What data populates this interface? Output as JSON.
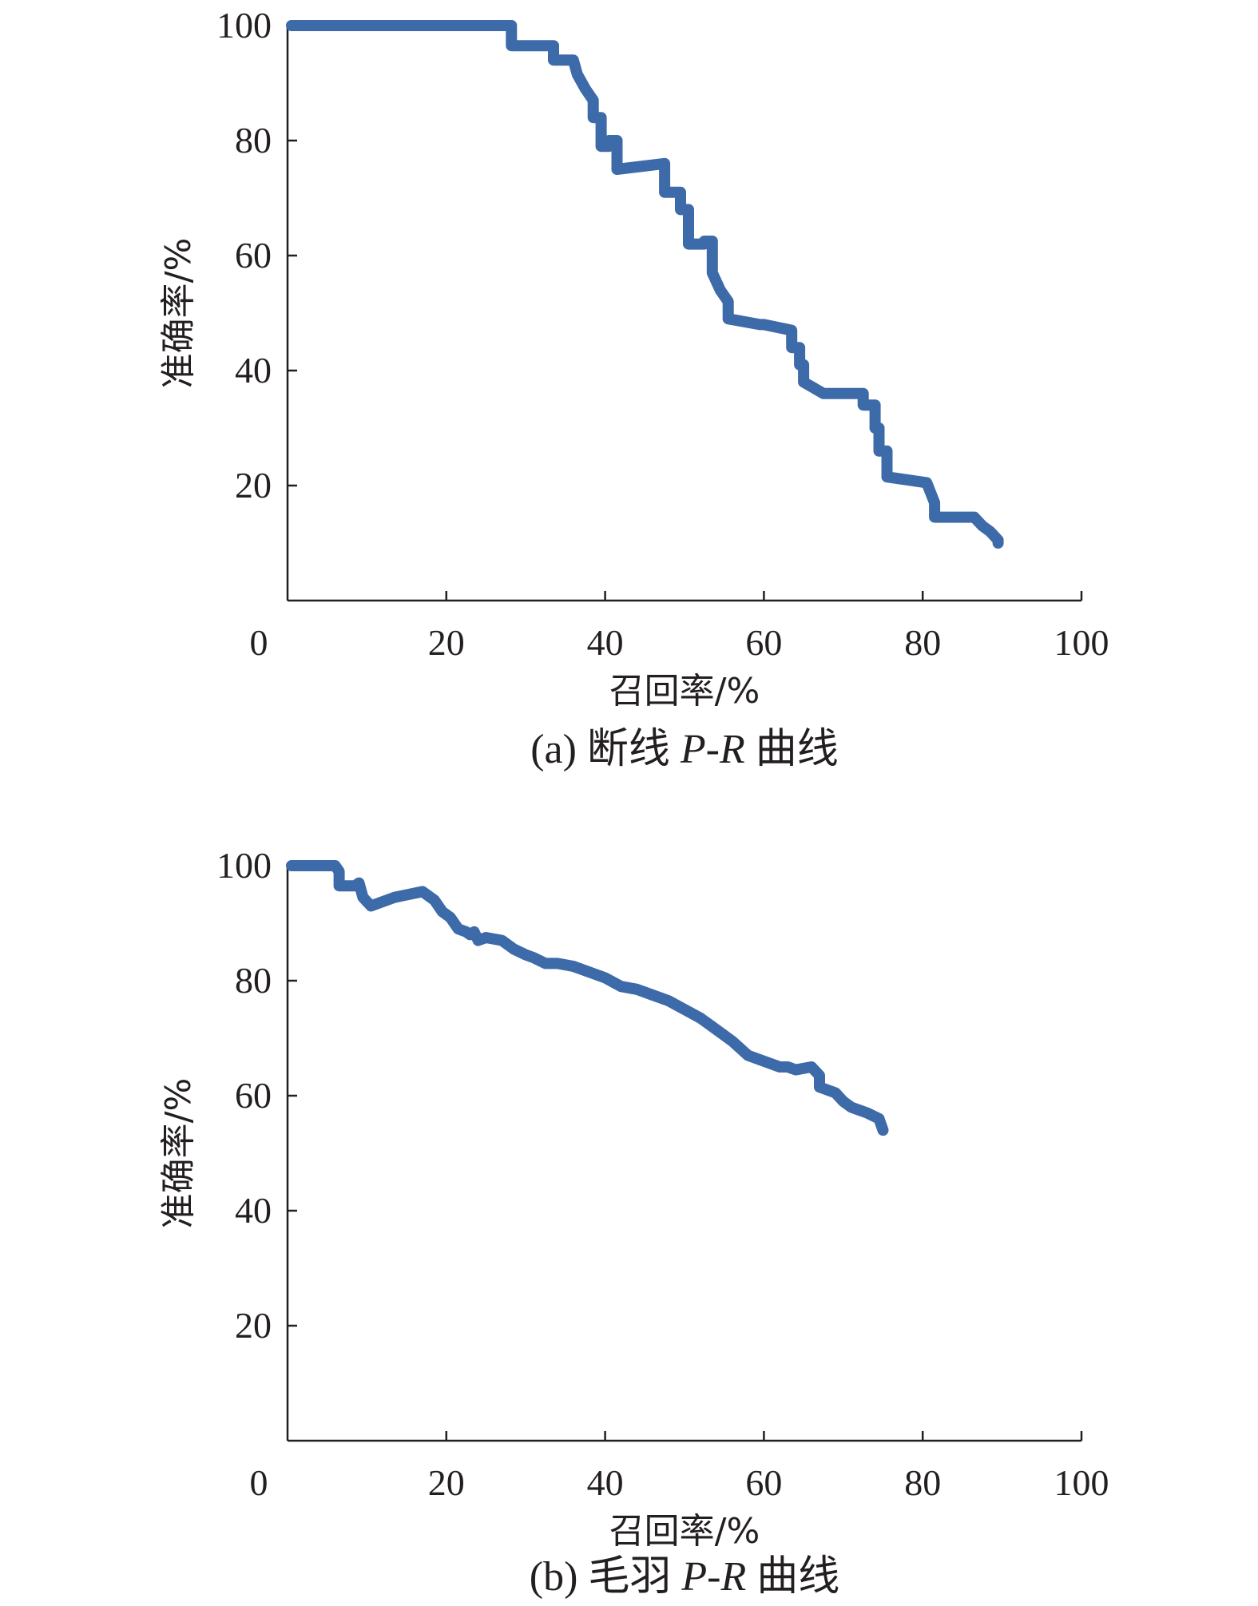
{
  "chart_data": [
    {
      "type": "line",
      "caption_prefix": "(a) 断线 ",
      "caption_italic": "P-R",
      "caption_suffix": " 曲线",
      "xlabel": "召回率/%",
      "ylabel": "准确率/%",
      "xlim": [
        0,
        100
      ],
      "ylim": [
        0,
        100
      ],
      "x_ticks": [
        0,
        20,
        40,
        60,
        80,
        100
      ],
      "y_ticks": [
        20,
        40,
        60,
        80,
        100
      ],
      "x_tick_labels": [
        "0",
        "20",
        "40",
        "60",
        "80",
        "100"
      ],
      "y_tick_labels": [
        "20",
        "40",
        "60",
        "80",
        "100"
      ],
      "color": "#3d6aa8",
      "series": [
        {
          "x": [
            0.5,
            28.2,
            28.2,
            33.5,
            33.5,
            36.0,
            36.5,
            37.5,
            38.5,
            38.5,
            39.5,
            39.5,
            40.5,
            40.5,
            41.5,
            41.5,
            47.5,
            47.5,
            49.5,
            49.5,
            50.5,
            50.5,
            52.5,
            52.5,
            53.5,
            53.5,
            54.5,
            55.5,
            55.5,
            59.5,
            60.0,
            63.5,
            63.5,
            64.5,
            64.5,
            65.0,
            65.0,
            67.5,
            72.5,
            72.5,
            74.0,
            74.0,
            74.5,
            74.5,
            75.5,
            75.5,
            80.5,
            81.5,
            81.5,
            84.5,
            86.5,
            87.5,
            88.5,
            89.5,
            89.5
          ],
          "y": [
            100,
            100,
            96.5,
            96.5,
            94.0,
            94.0,
            91.5,
            89.0,
            87.0,
            84.0,
            84.0,
            79.0,
            79.0,
            80.0,
            80.0,
            75.0,
            76.0,
            71.0,
            71.0,
            68.0,
            68.0,
            62.0,
            62.0,
            62.5,
            62.5,
            57.0,
            54.0,
            52.0,
            49.0,
            48.0,
            48.0,
            47.0,
            44.0,
            44.0,
            41.0,
            41.0,
            38.0,
            36.0,
            36.0,
            34.0,
            34.0,
            30.0,
            30.0,
            26.0,
            26.0,
            21.5,
            20.5,
            17.0,
            14.5,
            14.5,
            14.5,
            13.0,
            12.0,
            10.5,
            10.0
          ]
        }
      ]
    },
    {
      "type": "line",
      "caption_prefix": "(b) 毛羽 ",
      "caption_italic": "P-R",
      "caption_suffix": " 曲线",
      "xlabel": "召回率/%",
      "ylabel": "准确率/%",
      "xlim": [
        0,
        100
      ],
      "ylim": [
        0,
        100
      ],
      "x_ticks": [
        0,
        20,
        40,
        60,
        80,
        100
      ],
      "y_ticks": [
        20,
        40,
        60,
        80,
        100
      ],
      "x_tick_labels": [
        "0",
        "20",
        "40",
        "60",
        "80",
        "100"
      ],
      "y_tick_labels": [
        "20",
        "40",
        "60",
        "80",
        "100"
      ],
      "color": "#3d6aa8",
      "series": [
        {
          "x": [
            0.5,
            6.0,
            6.5,
            6.5,
            8.5,
            9.0,
            9.5,
            10.5,
            13.5,
            17.0,
            18.5,
            19.5,
            20.5,
            21.5,
            22.5,
            23.0,
            23.5,
            24.0,
            25.0,
            27.0,
            28.5,
            30.0,
            31.0,
            32.5,
            34.0,
            36.0,
            38.0,
            40.0,
            42.0,
            44.0,
            46.0,
            48.0,
            50.0,
            52.0,
            54.0,
            56.0,
            58.0,
            60.0,
            62.0,
            63.0,
            64.0,
            66.0,
            67.0,
            67.0,
            69.0,
            70.0,
            71.0,
            73.0,
            74.5,
            75.0
          ],
          "y": [
            100,
            100,
            99.0,
            96.5,
            96.5,
            97.0,
            94.5,
            93.0,
            94.5,
            95.5,
            94.0,
            92.0,
            91.0,
            89.0,
            88.5,
            88.0,
            88.5,
            87.0,
            87.5,
            87.0,
            85.5,
            84.5,
            84.0,
            83.0,
            83.0,
            82.5,
            81.5,
            80.5,
            79.0,
            78.5,
            77.5,
            76.5,
            75.0,
            73.5,
            71.5,
            69.5,
            67.0,
            66.0,
            65.0,
            65.0,
            64.5,
            65.0,
            63.5,
            61.5,
            60.5,
            59.0,
            58.0,
            57.0,
            56.0,
            54.0
          ]
        }
      ]
    }
  ]
}
